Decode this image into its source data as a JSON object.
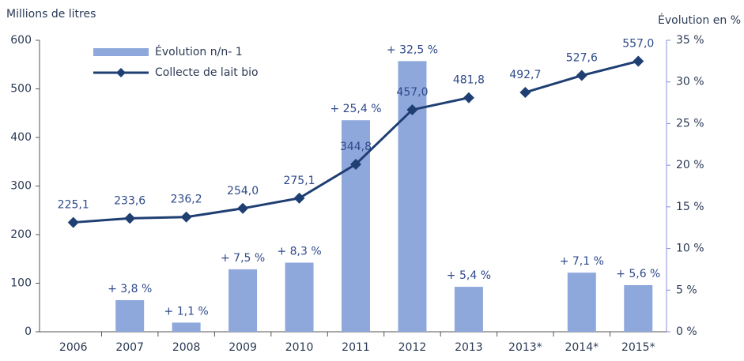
{
  "chart_data": {
    "type": "bar_line",
    "y_label": "Millions de litres",
    "y2_label": "Évolution en %",
    "categories": [
      "2006",
      "2007",
      "2008",
      "2009",
      "2010",
      "2011",
      "2012",
      "2013",
      "2013*",
      "2014*",
      "2015*"
    ],
    "series": [
      {
        "name": "Évolution n/n- 1",
        "type": "bar",
        "axis": "y2",
        "color": "#8fa8dc",
        "values": [
          null,
          3.8,
          1.1,
          7.5,
          8.3,
          25.4,
          32.5,
          5.4,
          null,
          7.1,
          5.6
        ],
        "value_labels": [
          null,
          "+ 3,8 %",
          "+ 1,1 %",
          "+ 7,5 %",
          "+ 8,3 %",
          "+ 25,4 %",
          "+ 32,5 %",
          "+ 5,4 %",
          null,
          "+ 7,1 %",
          "+ 5,6 %"
        ]
      },
      {
        "name": "Collecte de lait bio",
        "type": "line",
        "axis": "y",
        "color": "#1f3f73",
        "values": [
          225.1,
          233.6,
          236.2,
          254.0,
          275.1,
          344.8,
          457.0,
          481.8,
          492.7,
          527.6,
          557.0
        ],
        "value_labels": [
          "225,1",
          "233,6",
          "236,2",
          "254,0",
          "275,1",
          "344,8",
          "457,0",
          "481,8",
          "492,7",
          "527,6",
          "557,0"
        ],
        "break_after_index": 7
      }
    ],
    "ylim": [
      0,
      600
    ],
    "yticks": [
      0,
      100,
      200,
      300,
      400,
      500,
      600
    ],
    "y2lim": [
      0,
      35
    ],
    "y2ticks": [
      {
        "value": 0,
        "label": "0 %"
      },
      {
        "value": 5,
        "label": "5 %"
      },
      {
        "value": 10,
        "label": "10 %"
      },
      {
        "value": 15,
        "label": "15 %"
      },
      {
        "value": 20,
        "label": "20 %"
      },
      {
        "value": 25,
        "label": "25 %"
      },
      {
        "value": 30,
        "label": "30 %"
      },
      {
        "value": 35,
        "label": "35 %"
      }
    ],
    "grid": false,
    "legend": "top-left"
  }
}
